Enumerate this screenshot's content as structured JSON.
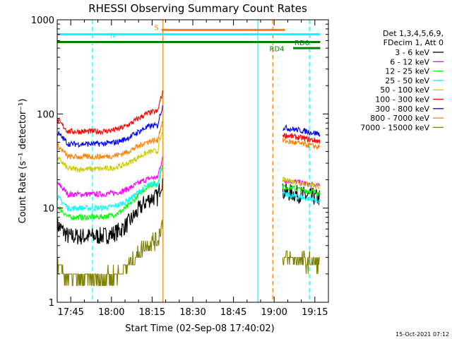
{
  "chart_data": {
    "type": "line",
    "title": "RHESSI Observing Summary Count Rates",
    "xlabel": "Start Time (02-Sep-08 17:40:02)",
    "ylabel": "Count Rate (s⁻¹ detector⁻¹)",
    "yscale": "log",
    "ylim": [
      1,
      1000
    ],
    "xlim_minutes": [
      0,
      100
    ],
    "x_tick_labels": [
      "17:45",
      "18:00",
      "18:15",
      "18:30",
      "18:45",
      "19:00",
      "19:15"
    ],
    "x_tick_minutes": [
      5,
      20,
      35,
      50,
      65,
      80,
      95
    ],
    "y_tick_labels": [
      "1",
      "10",
      "100",
      "1000"
    ],
    "y_tick_values": [
      1,
      10,
      100,
      1000
    ],
    "legend_header": [
      "Det 1,3,4,5,6,9,",
      "FDecim 1, Att 0"
    ],
    "legend_position": "right",
    "footer_timestamp": "15-Oct-2021 07:12",
    "series": [
      {
        "name": "3 - 6 keV",
        "color": "#000000",
        "base": 5.0,
        "peak": 13,
        "post": 15
      },
      {
        "name": "6 - 12 keV",
        "color": "#ff00ff",
        "base": 14,
        "peak": 21,
        "post": 20
      },
      {
        "name": "12 - 25 keV",
        "color": "#00ff00",
        "base": 8,
        "peak": 18,
        "post": 17
      },
      {
        "name": "25 - 50 keV",
        "color": "#00ffff",
        "base": 10,
        "peak": 18,
        "post": 14
      },
      {
        "name": "50 - 100 keV",
        "color": "#cccc00",
        "base": 26,
        "peak": 40,
        "post": 20
      },
      {
        "name": "100 - 300 keV",
        "color": "#ff0000",
        "base": 65,
        "peak": 105,
        "post": 60
      },
      {
        "name": "300 - 800 keV",
        "color": "#0000ff",
        "base": 48,
        "peak": 75,
        "post": 72
      },
      {
        "name": "800 - 7000 keV",
        "color": "#ff8000",
        "base": 35,
        "peak": 52,
        "post": 52
      },
      {
        "name": "7000 - 15000 keV",
        "color": "#808000",
        "base": 1.8,
        "peak": 4.5,
        "post": 3.0
      }
    ],
    "flags": [
      {
        "label": "N",
        "color": "#00ffff",
        "value": 700,
        "x_range": [
          0,
          97
        ]
      },
      {
        "label": "S",
        "color": "#ff8000",
        "value": 780,
        "x_range": [
          38.5,
          84
        ]
      },
      {
        "label": "",
        "color": "#008000",
        "value": 580,
        "x_range": [
          0,
          97
        ]
      },
      {
        "label": "RD4",
        "color": "#008000",
        "value": 580,
        "x_range": [
          84,
          97
        ]
      },
      {
        "label": "RD0",
        "color": "#008000",
        "value": 500,
        "x_range": [
          87,
          97
        ]
      }
    ],
    "vertical_markers": [
      {
        "color": "#00ffff",
        "minute": 13,
        "style": "dashed"
      },
      {
        "color": "#ff8000",
        "minute": 39,
        "style": "solid"
      },
      {
        "color": "#00ffff",
        "minute": 74,
        "style": "solid"
      },
      {
        "color": "#ff8000",
        "minute": 79.5,
        "style": "dashed"
      },
      {
        "color": "#00ffff",
        "minute": 93,
        "style": "dashed"
      }
    ],
    "data_gap_minutes": [
      39,
      83
    ]
  }
}
